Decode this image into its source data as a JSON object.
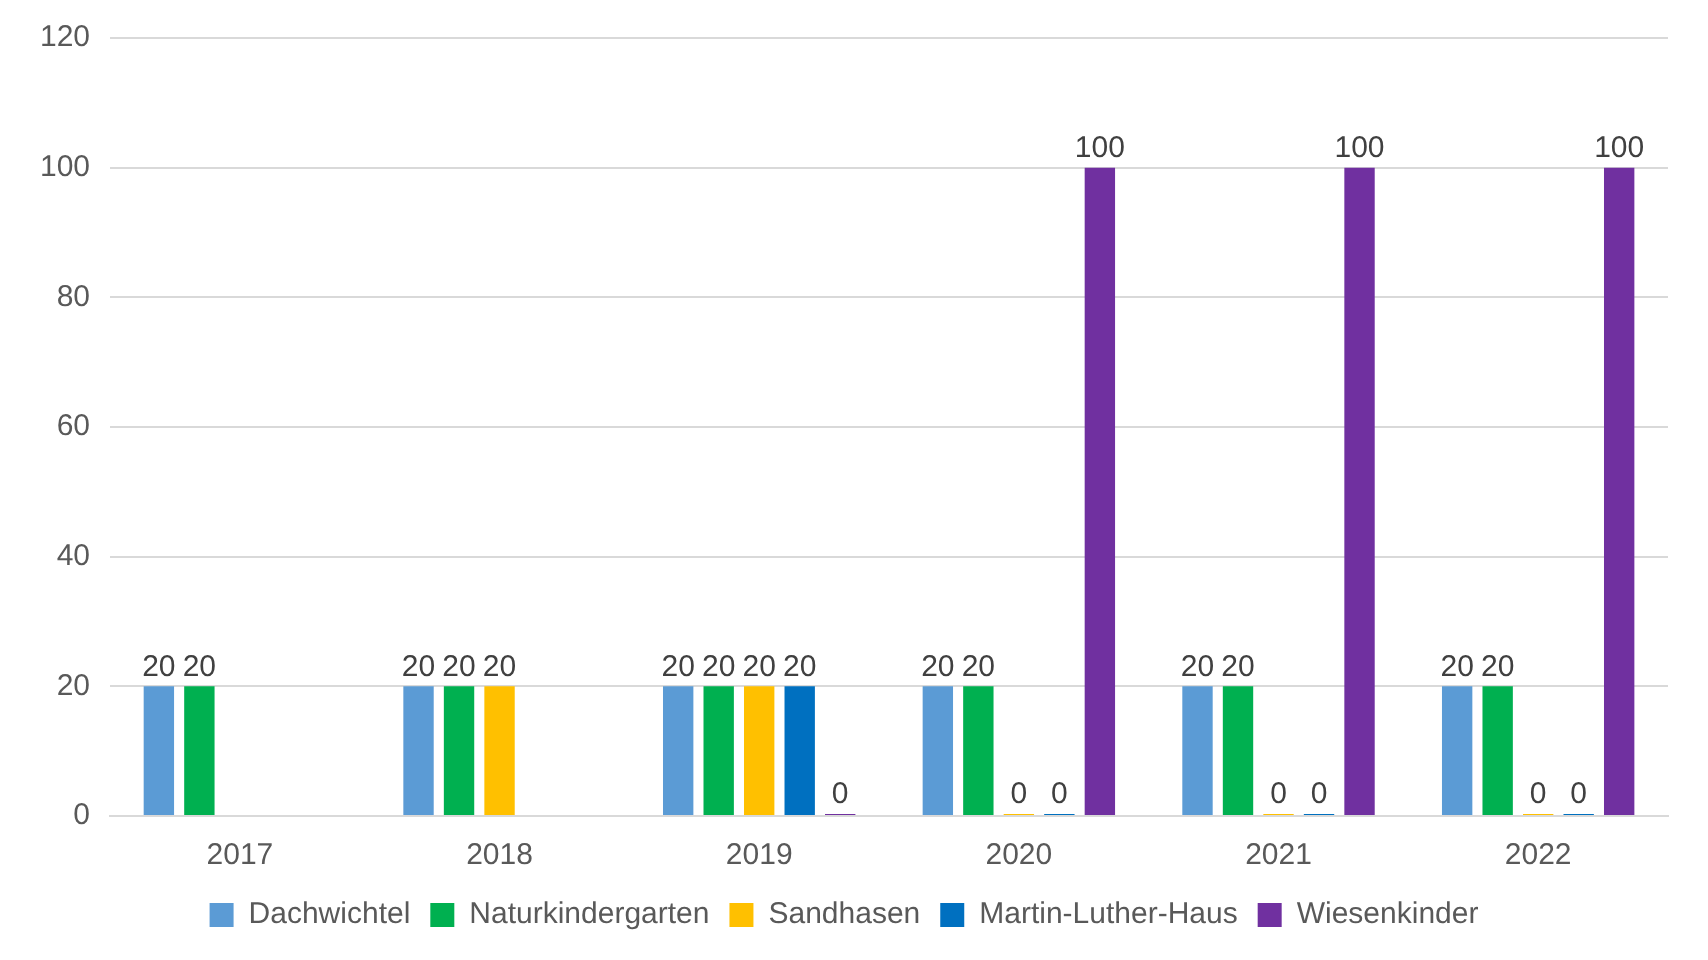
{
  "chart_data": {
    "type": "bar",
    "categories": [
      "2017",
      "2018",
      "2019",
      "2020",
      "2021",
      "2022"
    ],
    "series": [
      {
        "name": "Dachwichtel",
        "color": "#5b9bd5",
        "values": [
          20,
          20,
          20,
          20,
          20,
          20
        ]
      },
      {
        "name": "Naturkindergarten",
        "color": "#00b050",
        "values": [
          20,
          20,
          20,
          20,
          20,
          20
        ]
      },
      {
        "name": "Sandhasen",
        "color": "#ffc000",
        "values": [
          null,
          20,
          20,
          0,
          0,
          0
        ]
      },
      {
        "name": "Martin-Luther-Haus",
        "color": "#0070c0",
        "values": [
          null,
          null,
          20,
          0,
          0,
          0
        ]
      },
      {
        "name": "Wiesenkinder",
        "color": "#7030a0",
        "values": [
          null,
          null,
          0,
          100,
          100,
          100
        ]
      }
    ],
    "ylim": [
      0,
      120
    ],
    "yticks": [
      0,
      20,
      40,
      60,
      80,
      100,
      120
    ],
    "grid": "y",
    "legend": "bottom",
    "data_labels": true
  }
}
